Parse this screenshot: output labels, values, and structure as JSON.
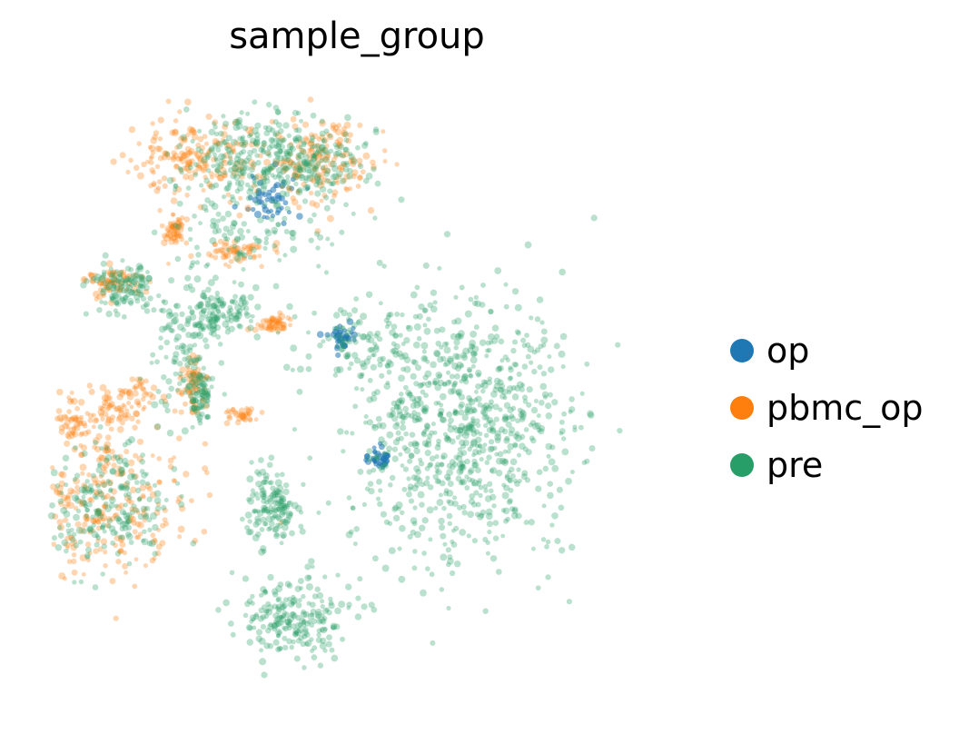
{
  "chart_data": {
    "type": "scatter",
    "title": "sample_group",
    "xlabel": "",
    "ylabel": "",
    "grid": false,
    "axes_visible": false,
    "legend_placement": "right",
    "series": [
      {
        "name": "op",
        "color": "#1f77b4",
        "clusters": [
          {
            "center": [
              0.53,
              0.4
            ],
            "spread": [
              0.01,
              0.01
            ],
            "share": 0.3
          },
          {
            "center": [
              0.47,
              0.6
            ],
            "spread": [
              0.01,
              0.01
            ],
            "share": 0.3
          },
          {
            "center": [
              0.35,
              0.83
            ],
            "spread": [
              0.02,
              0.02
            ],
            "share": 0.4
          }
        ]
      },
      {
        "name": "pbmc_op",
        "color": "#ff7f0e",
        "clusters": [
          {
            "center": [
              0.24,
              0.9
            ],
            "spread": [
              0.055,
              0.035
            ],
            "share": 0.17
          },
          {
            "center": [
              0.44,
              0.89
            ],
            "spread": [
              0.045,
              0.035
            ],
            "share": 0.15
          },
          {
            "center": [
              0.08,
              0.32
            ],
            "spread": [
              0.075,
              0.06
            ],
            "share": 0.26
          },
          {
            "center": [
              0.04,
              0.46
            ],
            "spread": [
              0.02,
              0.02
            ],
            "share": 0.05
          },
          {
            "center": [
              0.1,
              0.48
            ],
            "spread": [
              0.02,
              0.02
            ],
            "share": 0.04
          },
          {
            "center": [
              0.14,
              0.5
            ],
            "spread": [
              0.02,
              0.015
            ],
            "share": 0.04
          },
          {
            "center": [
              0.23,
              0.52
            ],
            "spread": [
              0.012,
              0.025
            ],
            "share": 0.06
          },
          {
            "center": [
              0.1,
              0.69
            ],
            "spread": [
              0.025,
              0.012
            ],
            "share": 0.06
          },
          {
            "center": [
              0.3,
              0.74
            ],
            "spread": [
              0.025,
              0.012
            ],
            "share": 0.05
          },
          {
            "center": [
              0.36,
              0.62
            ],
            "spread": [
              0.015,
              0.006
            ],
            "share": 0.04
          },
          {
            "center": [
              0.31,
              0.47
            ],
            "spread": [
              0.015,
              0.006
            ],
            "share": 0.03
          },
          {
            "center": [
              0.2,
              0.78
            ],
            "spread": [
              0.008,
              0.015
            ],
            "share": 0.05
          }
        ]
      },
      {
        "name": "pre",
        "color": "#279e68",
        "clusters": [
          {
            "center": [
              0.66,
              0.45
            ],
            "spread": [
              0.09,
              0.11
            ],
            "share": 0.35
          },
          {
            "center": [
              0.31,
              0.9
            ],
            "spread": [
              0.05,
              0.035
            ],
            "share": 0.08
          },
          {
            "center": [
              0.43,
              0.89
            ],
            "spread": [
              0.045,
              0.035
            ],
            "share": 0.07
          },
          {
            "center": [
              0.09,
              0.32
            ],
            "spread": [
              0.05,
              0.045
            ],
            "share": 0.09
          },
          {
            "center": [
              0.39,
              0.14
            ],
            "spread": [
              0.05,
              0.035
            ],
            "share": 0.09
          },
          {
            "center": [
              0.36,
              0.32
            ],
            "spread": [
              0.022,
              0.03
            ],
            "share": 0.06
          },
          {
            "center": [
              0.27,
              0.64
            ],
            "spread": [
              0.03,
              0.02
            ],
            "share": 0.05
          },
          {
            "center": [
              0.12,
              0.68
            ],
            "spread": [
              0.025,
              0.02
            ],
            "share": 0.05
          },
          {
            "center": [
              0.21,
              0.57
            ],
            "spread": [
              0.03,
              0.06
            ],
            "share": 0.04
          },
          {
            "center": [
              0.31,
              0.77
            ],
            "spread": [
              0.06,
              0.05
            ],
            "share": 0.05
          },
          {
            "center": [
              0.24,
              0.5
            ],
            "spread": [
              0.01,
              0.02
            ],
            "share": 0.03
          },
          {
            "center": [
              0.5,
              0.59
            ],
            "spread": [
              0.05,
              0.03
            ],
            "share": 0.04
          }
        ]
      }
    ]
  }
}
